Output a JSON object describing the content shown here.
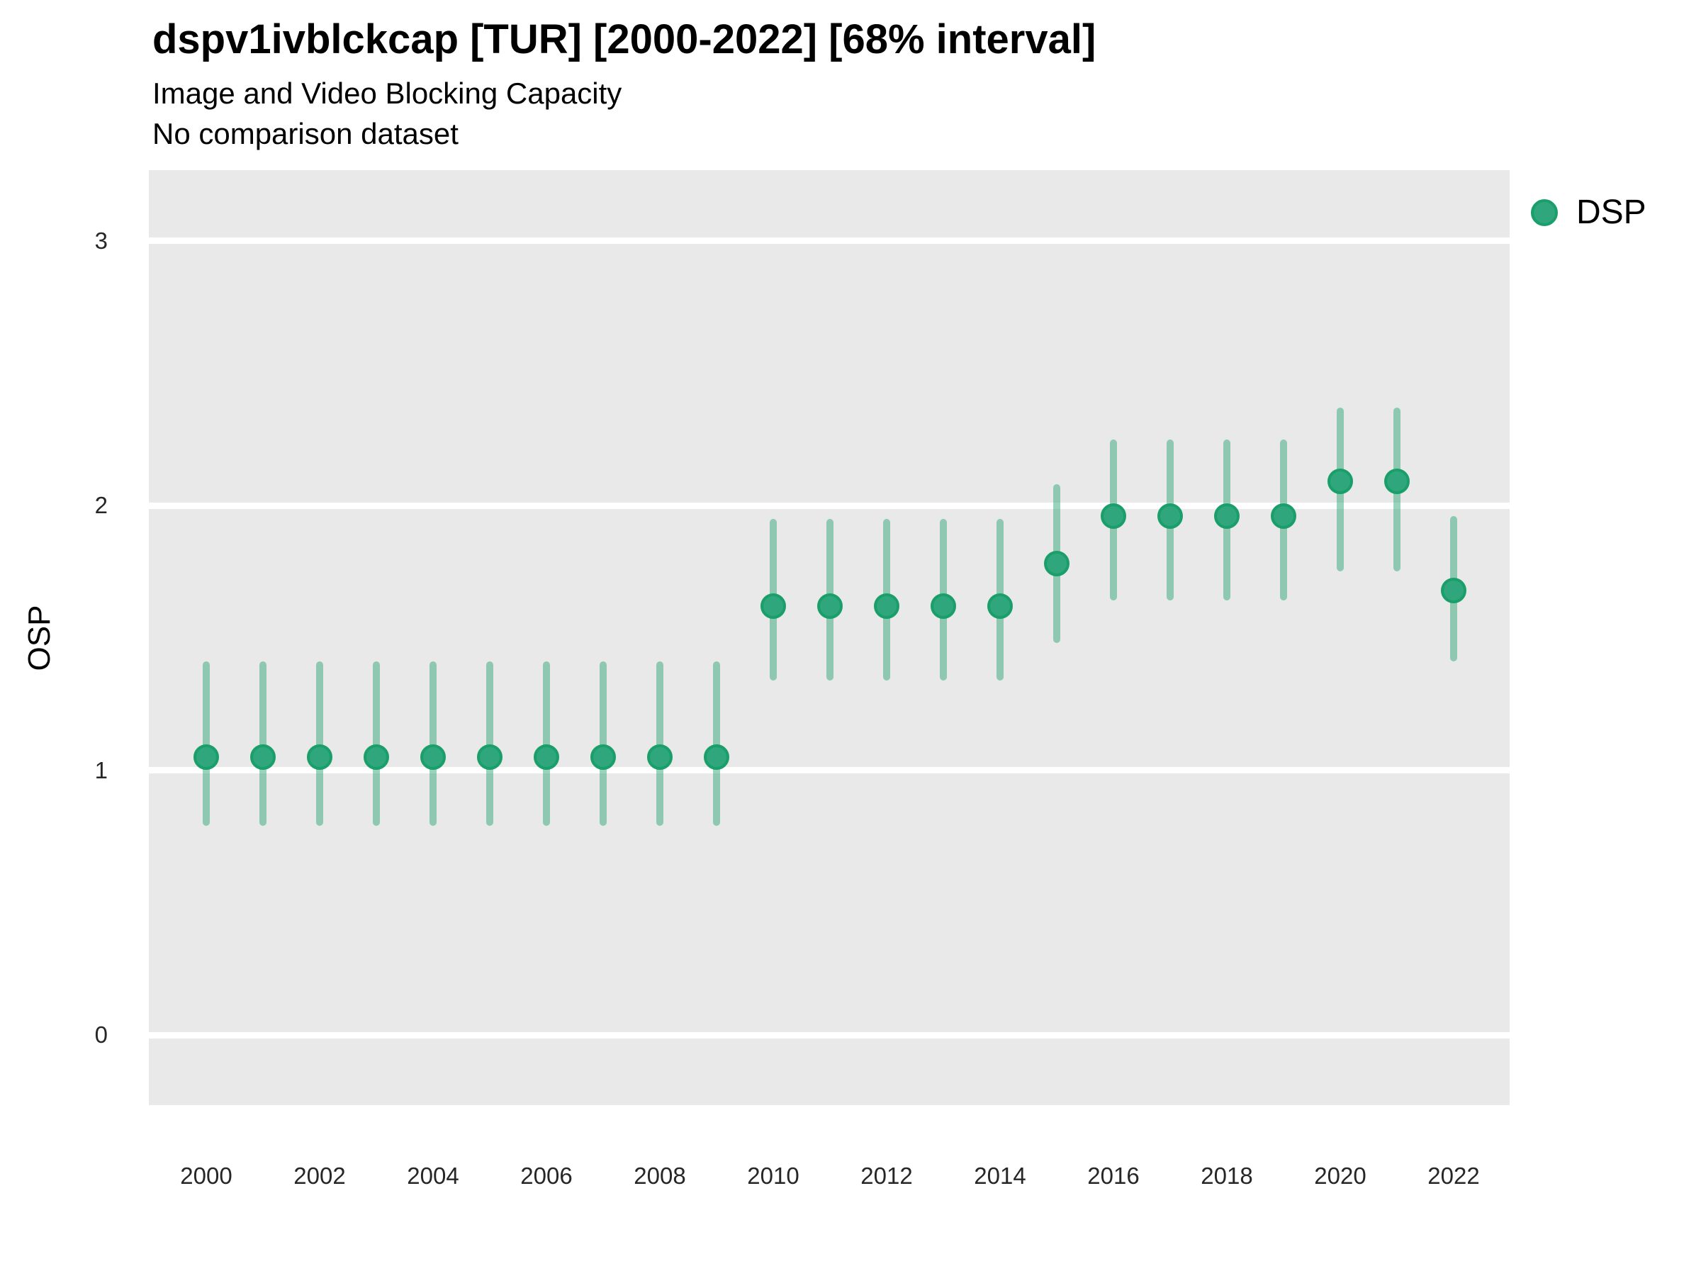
{
  "header": {
    "title": "dspv1ivblckcap [TUR] [2000-2022] [68% interval]",
    "subtitle1": "Image and Video Blocking Capacity",
    "subtitle2": "No comparison dataset"
  },
  "y_axis": {
    "label": "OSP",
    "ticks": [
      3,
      2,
      1,
      0
    ]
  },
  "x_axis": {
    "ticks": [
      2000,
      2002,
      2004,
      2006,
      2008,
      2010,
      2012,
      2014,
      2016,
      2018,
      2020,
      2022
    ]
  },
  "legend": {
    "position": "right",
    "items": [
      {
        "label": "DSP",
        "marker": "circle"
      }
    ]
  },
  "colors": {
    "point_fill": "#2fa67c",
    "point_stroke": "#1a9e6a",
    "errorbar": "rgba(31,160,108,0.45)",
    "panel_bg": "#e9e9e9",
    "gridline": "#ffffff",
    "text": "#000000"
  },
  "chart_data": {
    "type": "scatter",
    "title": "dspv1ivblckcap [TUR] [2000-2022] [68% interval]",
    "subtitle": [
      "Image and Video Blocking Capacity",
      "No comparison dataset"
    ],
    "xlabel": "",
    "ylabel": "OSP",
    "interval": "68%",
    "x": [
      2000,
      2001,
      2002,
      2003,
      2004,
      2005,
      2006,
      2007,
      2008,
      2009,
      2010,
      2011,
      2012,
      2013,
      2014,
      2015,
      2016,
      2017,
      2018,
      2019,
      2020,
      2021,
      2022
    ],
    "series": [
      {
        "name": "DSP",
        "values": [
          1.05,
          1.05,
          1.05,
          1.05,
          1.05,
          1.05,
          1.05,
          1.05,
          1.05,
          1.05,
          1.62,
          1.62,
          1.62,
          1.62,
          1.62,
          1.78,
          1.96,
          1.96,
          1.96,
          1.96,
          2.09,
          2.09,
          1.68
        ],
        "lower_68": [
          0.79,
          0.79,
          0.79,
          0.79,
          0.79,
          0.79,
          0.79,
          0.79,
          0.79,
          0.79,
          1.34,
          1.34,
          1.34,
          1.34,
          1.34,
          1.48,
          1.64,
          1.64,
          1.64,
          1.64,
          1.75,
          1.75,
          1.41
        ],
        "upper_68": [
          1.41,
          1.41,
          1.41,
          1.41,
          1.41,
          1.41,
          1.41,
          1.41,
          1.41,
          1.41,
          1.95,
          1.95,
          1.95,
          1.95,
          1.95,
          2.08,
          2.25,
          2.25,
          2.25,
          2.25,
          2.37,
          2.37,
          1.96
        ]
      }
    ],
    "ylim": [
      -0.27,
      3.27
    ],
    "yticks": [
      0,
      1,
      2,
      3
    ],
    "xticks": [
      2000,
      2002,
      2004,
      2006,
      2008,
      2010,
      2012,
      2014,
      2016,
      2018,
      2020,
      2022
    ],
    "grid": "major-horizontal",
    "legend_position": "right"
  }
}
